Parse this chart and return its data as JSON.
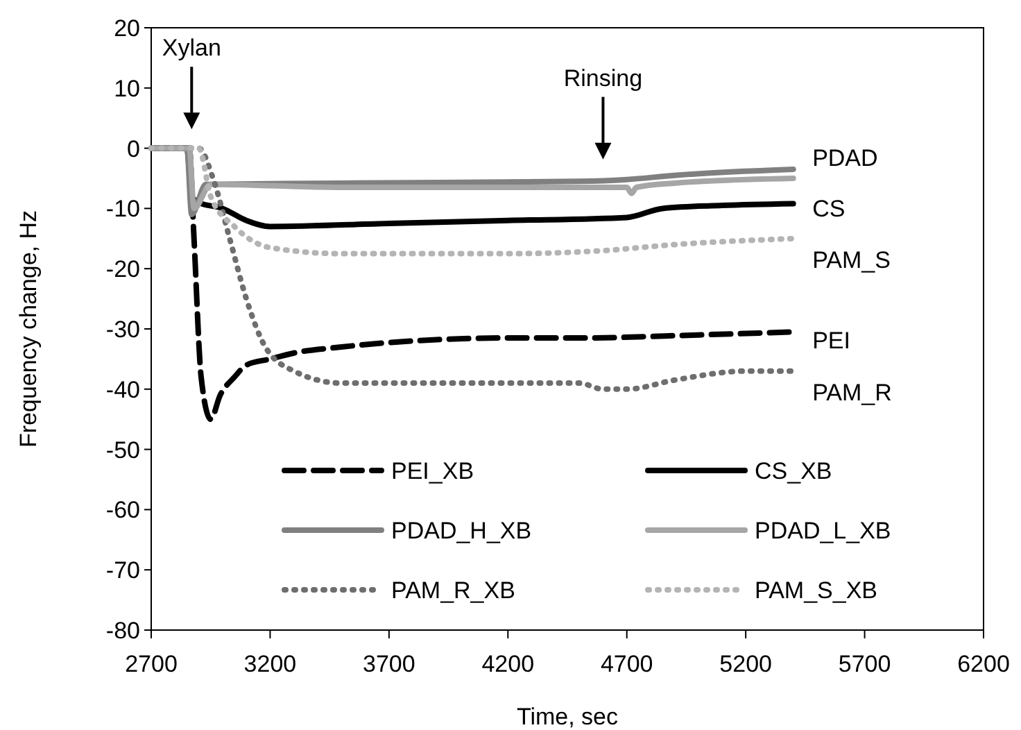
{
  "chart_data": {
    "type": "line",
    "xlabel": "Time, sec",
    "ylabel": "Frequency change, Hz",
    "xlim": [
      2700,
      6200
    ],
    "xticks": [
      2700,
      3200,
      3700,
      4200,
      4700,
      5200,
      5700,
      6200
    ],
    "ylim": [
      -80,
      20
    ],
    "yticks": [
      -80,
      -70,
      -60,
      -50,
      -40,
      -30,
      -20,
      -10,
      0,
      10,
      20
    ],
    "grid": false,
    "legend": "bottom",
    "series": [
      {
        "name": "PEI_XB",
        "color": "#000000",
        "line_style": "dashed",
        "x": [
          2700,
          2860,
          2880,
          2910,
          2950,
          2990,
          3050,
          3100,
          3200,
          3300,
          3500,
          3800,
          4200,
          4500,
          5000,
          5400
        ],
        "values": [
          0,
          0,
          -15,
          -38,
          -45,
          -41,
          -38,
          -36,
          -35,
          -34,
          -33,
          -32,
          -31.5,
          -31.5,
          -31,
          -30.5
        ]
      },
      {
        "name": "CS_XB",
        "color": "#000000",
        "line_style": "solid",
        "x": [
          2700,
          2850,
          2870,
          2900,
          3000,
          3100,
          3200,
          3700,
          4200,
          4700,
          4850,
          5100,
          5400
        ],
        "values": [
          0,
          0,
          -8,
          -9,
          -10,
          -12,
          -13,
          -12.5,
          -12,
          -11.5,
          -10,
          -9.5,
          -9.2
        ]
      },
      {
        "name": "PDAD_H_XB",
        "color": "#808080",
        "line_style": "solid",
        "x": [
          2700,
          2850,
          2870,
          2930,
          3500,
          4500,
          4700,
          4900,
          5400
        ],
        "values": [
          0,
          0,
          -11,
          -6,
          -5.8,
          -5.5,
          -5.2,
          -4.5,
          -3.5
        ]
      },
      {
        "name": "PDAD_L_XB",
        "color": "#a6a6a6",
        "line_style": "solid",
        "x": [
          2700,
          2860,
          2880,
          2950,
          3500,
          4700,
          4720,
          4740,
          4900,
          5400
        ],
        "values": [
          0,
          0,
          -10,
          -6,
          -6.5,
          -6.5,
          -7.5,
          -6.5,
          -5.8,
          -5
        ]
      },
      {
        "name": "PAM_R_XB",
        "color": "#6e6e6e",
        "line_style": "dotted",
        "x": [
          2700,
          2900,
          2960,
          3030,
          3100,
          3180,
          3300,
          3500,
          4000,
          4500,
          4600,
          4700,
          4900,
          5200,
          5400
        ],
        "values": [
          0,
          0,
          -5,
          -15,
          -25,
          -33,
          -37,
          -39,
          -39,
          -39,
          -40,
          -40,
          -38.5,
          -37,
          -37
        ]
      },
      {
        "name": "PAM_S_XB",
        "color": "#b4b4b4",
        "line_style": "dotted",
        "x": [
          2700,
          2900,
          2950,
          3050,
          3200,
          3500,
          4200,
          4600,
          4900,
          5400
        ],
        "values": [
          0,
          0,
          -8,
          -13,
          -16.5,
          -17.5,
          -17.5,
          -17,
          -16,
          -15
        ]
      }
    ],
    "annotations": [
      "Xylan",
      "Rinsing",
      "PDAD",
      "CS",
      "PAM_S",
      "PEI",
      "PAM_R"
    ]
  }
}
